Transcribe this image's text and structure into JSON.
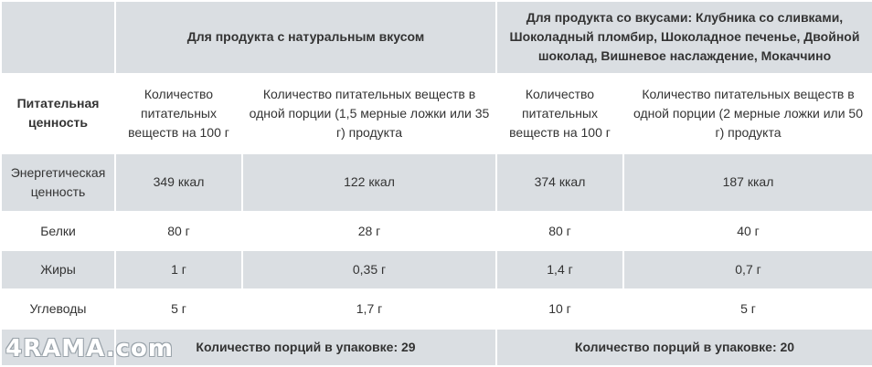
{
  "table": {
    "group_header_1": "Для продукта с натуральным вкусом",
    "group_header_2": "Для продукта со вкусами: Клубника со сливками, Шоколадный пломбир, Шоколадное печенье, Двойной шоколад, Вишневое наслаждение, Мокаччино",
    "row_header_label": "Питательная ценность",
    "col_per_100_1": "Количество питательных веществ на 100 г",
    "col_serving_1": "Количество питательных веществ в одной порции (1,5 мерные ложки или 35 г) продукта",
    "col_per_100_2": "Количество питательных веществ на 100 г",
    "col_serving_2": "Количество питательных веществ в одной порции (2 мерные ложки или 50 г) продукта",
    "rows": [
      {
        "label": "Энергетическая ценность",
        "v1": "349 ккал",
        "v2": "122 ккал",
        "v3": "374 ккал",
        "v4": "187 ккал"
      },
      {
        "label": "Белки",
        "v1": "80 г",
        "v2": "28 г",
        "v3": "80 г",
        "v4": "40 г"
      },
      {
        "label": "Жиры",
        "v1": "1 г",
        "v2": "0,35 г",
        "v3": "1,4 г",
        "v4": "0,7 г"
      },
      {
        "label": "Углеводы",
        "v1": "5 г",
        "v2": "1,7 г",
        "v3": "10 г",
        "v4": "5 г"
      }
    ],
    "footer_1": "Количество порций в упаковке: 29",
    "footer_2": "Количество порций в упаковке: 20"
  },
  "watermark": "4RAMA.com",
  "colors": {
    "gray_band": "#dadee2",
    "white_band": "#ffffff",
    "text": "#333333"
  }
}
